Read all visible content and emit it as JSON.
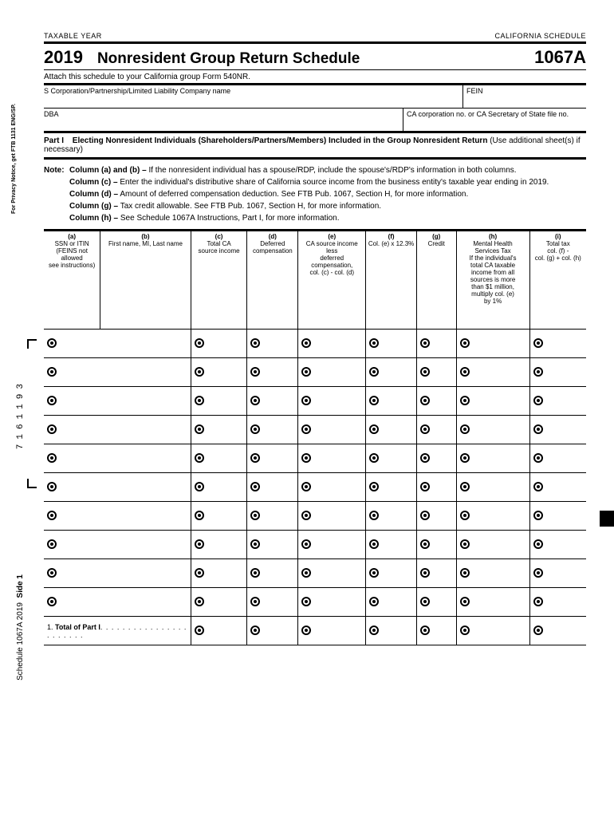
{
  "header": {
    "taxable_year_label": "TAXABLE YEAR",
    "schedule_label": "CALIFORNIA SCHEDULE",
    "year": "2019",
    "title": "Nonresident Group Return Schedule",
    "form_number": "1067A",
    "attach_text": "Attach this schedule to your California group Form 540NR."
  },
  "info": {
    "corp_label": "S Corporation/Partnership/Limited Liability Company name",
    "fein_label": "FEIN",
    "dba_label": "DBA",
    "ca_corp_label": "CA corporation no. or CA Secretary of State file no."
  },
  "part": {
    "label": "Part I",
    "title": "Electing Nonresident Individuals (Shareholders/Partners/Members) Included in the Group Nonresident Return",
    "suffix": "(Use additional sheet(s) if necessary)"
  },
  "notes": {
    "note_label": "Note:",
    "ab_label": "Column (a) and (b) –",
    "ab_text": " If the nonresident individual has a spouse/RDP, include the spouse's/RDP's information in both columns.",
    "c_label": "Column (c) –",
    "c_text": " Enter the individual's distributive share of California source income from the business entity's taxable year ending in 2019.",
    "d_label": "Column (d) –",
    "d_text": " Amount of deferred compensation deduction. See FTB Pub. 1067, Section H, for more information.",
    "g_label": "Column (g) –",
    "g_text": " Tax credit allowable. See FTB Pub. 1067, Section H, for more information.",
    "h_label": "Column (h) –",
    "h_text": " See Schedule 1067A Instructions, Part I, for more information."
  },
  "columns": {
    "a": {
      "h": "(a)",
      "t": "SSN or ITIN\n(FEINS not allowed\nsee instructions)"
    },
    "b": {
      "h": "(b)",
      "t": "First name, MI, Last name"
    },
    "c": {
      "h": "(c)",
      "t": "Total CA\nsource income"
    },
    "d": {
      "h": "(d)",
      "t": "Deferred\ncompensation"
    },
    "e": {
      "h": "(e)",
      "t": "CA source income less\ndeferred compensation,\ncol. (c) - col. (d)"
    },
    "f": {
      "h": "(f)",
      "t": "Col. (e) x 12.3%"
    },
    "g": {
      "h": "(g)",
      "t": "Credit"
    },
    "h": {
      "h": "(h)",
      "t": "Mental Health\nServices Tax\nIf the individual's\ntotal CA taxable\nincome from all\nsources is more\nthan $1 million,\nmultiply col. (e)\nby 1%"
    },
    "i": {
      "h": "(i)",
      "t": "Total tax\ncol. (f) -\ncol. (g) + col. (h)"
    }
  },
  "total": {
    "num": "1.",
    "label": "Total of Part I"
  },
  "margins": {
    "privacy": "For Privacy Notice, get FTB 1131 ENG/SP.",
    "barcode": "7161193",
    "side_sched": "Schedule 1067A 2019",
    "side_label": "Side 1"
  },
  "grid": {
    "row_count": 10,
    "bullet_cols": 8
  }
}
